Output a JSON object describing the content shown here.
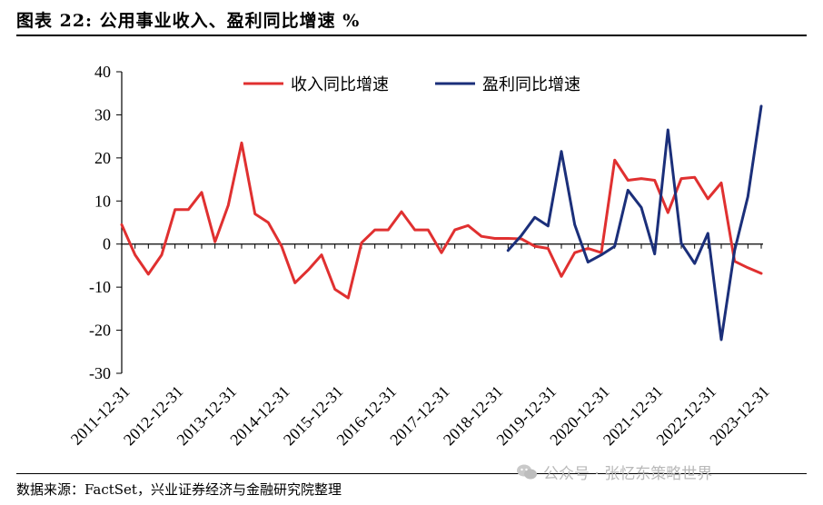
{
  "figure": {
    "title": "图表 22:  公用事业收入、盈利同比增速    %",
    "source": "数据来源：FactSet，兴业证券经济与金融研究院整理",
    "watermark": "公众号 · 张忆东策略世界"
  },
  "colors": {
    "revenue": "#e03030",
    "profit": "#1b2f7a",
    "axis": "#000000"
  },
  "chart_data": {
    "type": "line",
    "title": "",
    "xlabel": "",
    "ylabel": "",
    "ylim": [
      -30,
      40
    ],
    "y_ticks": [
      40,
      30,
      20,
      10,
      0,
      -10,
      -20,
      -30
    ],
    "x_tick_labels": [
      "2011-12-31",
      "2012-12-31",
      "2013-12-31",
      "2014-12-31",
      "2015-12-31",
      "2016-12-31",
      "2017-12-31",
      "2018-12-31",
      "2019-12-31",
      "2020-12-31",
      "2021-12-31",
      "2022-12-31",
      "2023-12-31"
    ],
    "quarters": [
      "2011Q4",
      "2012Q1",
      "2012Q2",
      "2012Q3",
      "2012Q4",
      "2013Q1",
      "2013Q2",
      "2013Q3",
      "2013Q4",
      "2014Q1",
      "2014Q2",
      "2014Q3",
      "2014Q4",
      "2015Q1",
      "2015Q2",
      "2015Q3",
      "2015Q4",
      "2016Q1",
      "2016Q2",
      "2016Q3",
      "2016Q4",
      "2017Q1",
      "2017Q2",
      "2017Q3",
      "2017Q4",
      "2018Q1",
      "2018Q2",
      "2018Q3",
      "2018Q4",
      "2019Q1",
      "2019Q2",
      "2019Q3",
      "2019Q4",
      "2020Q1",
      "2020Q2",
      "2020Q3",
      "2020Q4",
      "2021Q1",
      "2021Q2",
      "2021Q3",
      "2021Q4",
      "2022Q1",
      "2022Q2",
      "2022Q3",
      "2022Q4",
      "2023Q1",
      "2023Q2",
      "2023Q3",
      "2023Q4"
    ],
    "legend_position": "top",
    "grid": false,
    "series": [
      {
        "name": "收入同比增速",
        "color": "#e03030",
        "values": [
          4.5,
          -2.5,
          -7,
          -2.5,
          8,
          8,
          12,
          0.5,
          9,
          23.5,
          7,
          5,
          -0.5,
          -9,
          -6,
          -2.5,
          -10.5,
          -12.5,
          0.3,
          3.3,
          3.3,
          7.5,
          3.3,
          3.3,
          -2,
          3.3,
          4.3,
          1.8,
          1.3,
          1.3,
          1.2,
          -0.5,
          -1,
          -7.5,
          -2,
          -1,
          -2,
          19.5,
          14.8,
          15.2,
          14.8,
          7.3,
          15.2,
          15.5,
          10.5,
          14.2,
          -4,
          -5.5,
          -6.8
        ]
      },
      {
        "name": "盈利同比增速",
        "color": "#1b2f7a",
        "values": [
          null,
          null,
          null,
          null,
          null,
          null,
          null,
          null,
          null,
          null,
          null,
          null,
          null,
          null,
          null,
          null,
          null,
          null,
          null,
          null,
          null,
          null,
          null,
          null,
          null,
          null,
          null,
          null,
          null,
          -1.5,
          2,
          6.2,
          4.2,
          21.5,
          4.5,
          -4.2,
          -2.5,
          -0.5,
          12.5,
          8.5,
          -2.3,
          26.5,
          0.2,
          -4.5,
          2.5,
          -22.2,
          -1.5,
          11,
          32
        ]
      }
    ]
  }
}
